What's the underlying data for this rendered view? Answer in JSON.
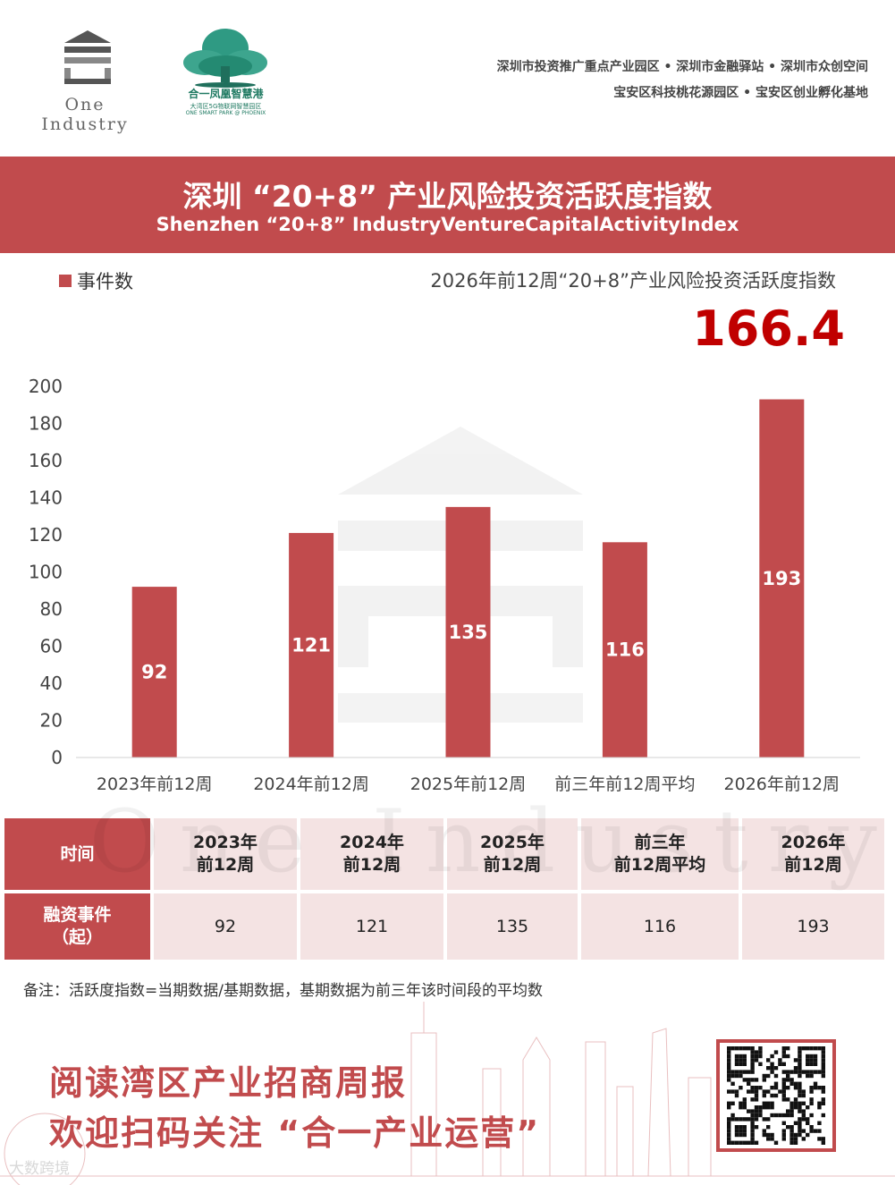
{
  "header": {
    "logo_left_text": "One Industry",
    "logo_right_cn": "合一凤凰智慧港",
    "logo_right_sub1": "大湾区5G物联网智慧园区",
    "logo_right_sub2": "ONE SMART PARK @ PHOENIX",
    "line1": "深圳市投资推广重点产业园区 • 深圳市金融驿站 • 深圳市众创空间",
    "line2": "宝安区科技桃花源园区 • 宝安区创业孵化基地"
  },
  "banner": {
    "title_cn": "深圳 “20+8” 产业风险投资活跃度指数",
    "title_en": "Shenzhen “20+8” IndustryVentureCapitalActivityIndex"
  },
  "index": {
    "caption": "2026年前12周“20+8”产业风险投资活跃度指数",
    "value": "166.4"
  },
  "chart_data": {
    "type": "bar",
    "categories": [
      "2023年前12周",
      "2024年前12周",
      "2025年前12周",
      "前三年前12周平均",
      "2026年前12周"
    ],
    "series": [
      {
        "name": "事件数",
        "values": [
          92,
          121,
          135,
          116,
          193
        ]
      }
    ],
    "ylim": [
      0,
      200
    ],
    "yticks": [
      0,
      20,
      40,
      60,
      80,
      100,
      120,
      140,
      160,
      180,
      200
    ],
    "legend_position": "top-left",
    "grid": false,
    "bar_color": "#c14b4d"
  },
  "table": {
    "row1_header": "时间",
    "row2_header": "融资事件\n（起）",
    "columns": [
      "2023年\n前12周",
      "2024年\n前12周",
      "2025年\n前12周",
      "前三年\n前12周平均",
      "2026年\n前12周"
    ],
    "values": [
      "92",
      "121",
      "135",
      "116",
      "193"
    ]
  },
  "note": "备注：活跃度指数=当期数据/基期数据，基期数据为前三年该时间段的平均数",
  "promo": {
    "line1": "阅读湾区产业招商周报",
    "line2": "欢迎扫码关注 “合一产业运营”"
  },
  "watermark": {
    "center": "One Industry",
    "corner": "大数跨境"
  },
  "colors": {
    "accent": "#c14b4d",
    "index_value": "#c00000",
    "table_fill": "#f4e3e3"
  }
}
